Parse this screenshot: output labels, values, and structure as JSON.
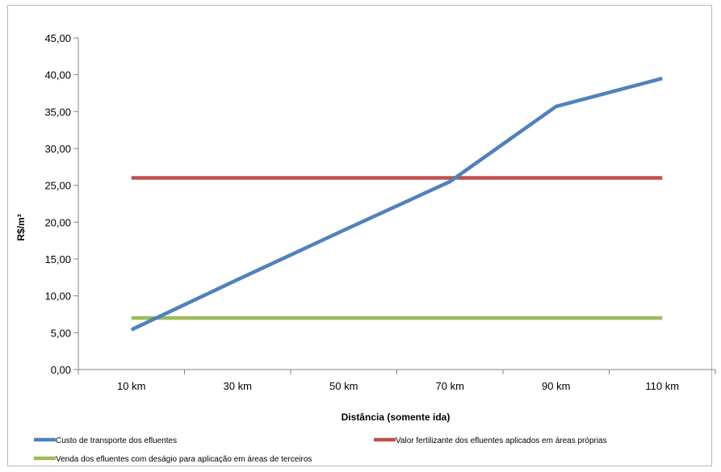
{
  "chart_data": {
    "type": "line",
    "title": "",
    "xlabel": "Distância (somente ida)",
    "ylabel": "R$/m³",
    "categories": [
      "10 km",
      "30 km",
      "50 km",
      "70 km",
      "90 km",
      "110 km"
    ],
    "ylim": [
      0,
      45
    ],
    "yticks": [
      "0,00",
      "5,00",
      "10,00",
      "15,00",
      "20,00",
      "25,00",
      "30,00",
      "35,00",
      "40,00",
      "45,00"
    ],
    "grid": false,
    "legend_position": "bottom",
    "series": [
      {
        "name": "Custo de transporte dos efluentes",
        "color": "#4F81BD",
        "values": [
          5.4,
          12.2,
          18.9,
          25.5,
          35.7,
          39.5
        ]
      },
      {
        "name": "Valor fertilizante dos efluentes aplicados em áreas próprias",
        "color": "#C0504D",
        "values": [
          26.0,
          26.0,
          26.0,
          26.0,
          26.0,
          26.0
        ]
      },
      {
        "name": "Venda dos efluentes com deságio para aplicação em áreas de terceiros",
        "color": "#9BBB59",
        "values": [
          7.0,
          7.0,
          7.0,
          7.0,
          7.0,
          7.0
        ]
      }
    ]
  }
}
